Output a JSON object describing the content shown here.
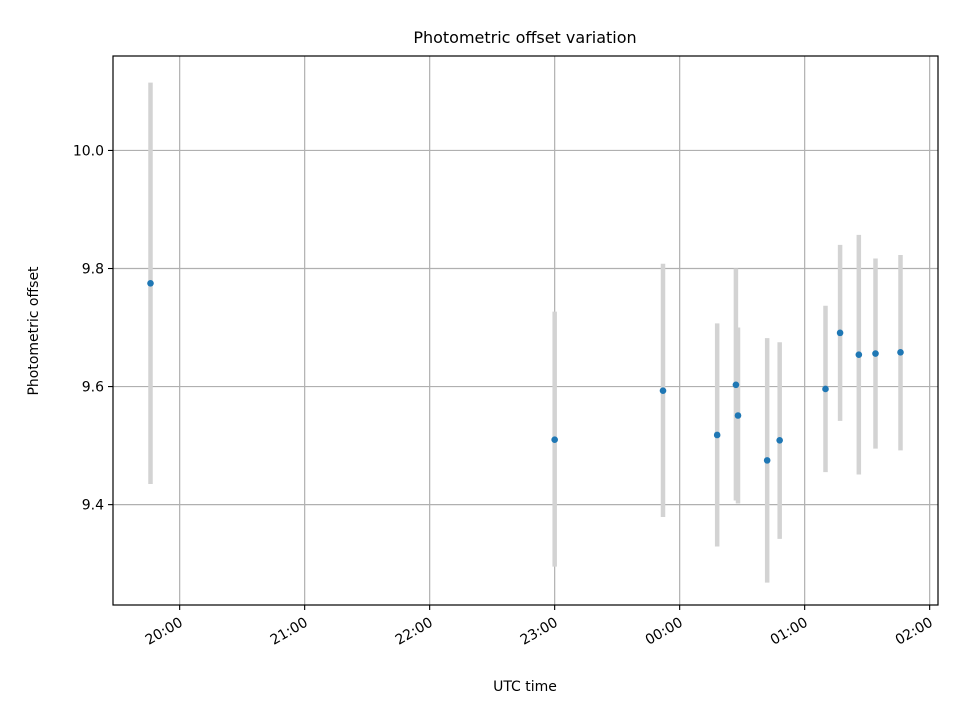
{
  "chart_data": {
    "type": "scatter",
    "title": "Photometric offset variation",
    "xlabel": "UTC time",
    "ylabel": "Photometric offset",
    "x_axis": {
      "kind": "time",
      "range": [
        "19:28",
        "02:04"
      ],
      "ticks": [
        "20:00",
        "21:00",
        "22:00",
        "23:00",
        "00:00",
        "01:00",
        "02:00"
      ],
      "tick_rotation": "30deg"
    },
    "y_axis": {
      "range": [
        9.23,
        10.16
      ],
      "ticks": [
        "9.4",
        "9.6",
        "9.8",
        "10.0"
      ]
    },
    "grid": true,
    "series": [
      {
        "marker_color": "#1f77b4",
        "errorbar_color": "#d3d3d3",
        "points": [
          {
            "x": "19:46",
            "y": 9.775,
            "ylow": 9.435,
            "yhigh": 10.115
          },
          {
            "x": "23:00",
            "y": 9.51,
            "ylow": 9.295,
            "yhigh": 9.727
          },
          {
            "x": "23:52",
            "y": 9.593,
            "ylow": 9.379,
            "yhigh": 9.808
          },
          {
            "x": "00:18",
            "y": 9.518,
            "ylow": 9.329,
            "yhigh": 9.707
          },
          {
            "x": "00:27",
            "y": 9.603,
            "ylow": 9.407,
            "yhigh": 9.8
          },
          {
            "x": "00:28",
            "y": 9.551,
            "ylow": 9.402,
            "yhigh": 9.7
          },
          {
            "x": "00:42",
            "y": 9.475,
            "ylow": 9.268,
            "yhigh": 9.682
          },
          {
            "x": "00:48",
            "y": 9.509,
            "ylow": 9.342,
            "yhigh": 9.675
          },
          {
            "x": "01:10",
            "y": 9.596,
            "ylow": 9.455,
            "yhigh": 9.737
          },
          {
            "x": "01:17",
            "y": 9.691,
            "ylow": 9.542,
            "yhigh": 9.84
          },
          {
            "x": "01:26",
            "y": 9.654,
            "ylow": 9.451,
            "yhigh": 9.857
          },
          {
            "x": "01:34",
            "y": 9.656,
            "ylow": 9.495,
            "yhigh": 9.817
          },
          {
            "x": "01:46",
            "y": 9.658,
            "ylow": 9.492,
            "yhigh": 9.823
          }
        ]
      }
    ]
  }
}
